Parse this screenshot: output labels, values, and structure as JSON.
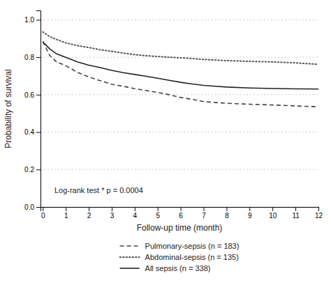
{
  "chart_data": {
    "type": "line",
    "xlabel": "Follow-up time (month)",
    "ylabel": "Probability of survival",
    "annotation": "Log-rank test * p = 0.0004",
    "x": [
      0,
      0.3,
      0.6,
      1,
      1.5,
      2,
      2.5,
      3,
      3.5,
      4,
      4.5,
      5,
      5.5,
      6,
      6.5,
      7,
      7.5,
      8,
      9,
      10,
      11,
      12
    ],
    "series": [
      {
        "name": "Pulmonary-sepsis (n = 183)",
        "color": "#444444",
        "line_style": "dashed",
        "values": [
          0.885,
          0.81,
          0.775,
          0.755,
          0.72,
          0.695,
          0.675,
          0.655,
          0.645,
          0.632,
          0.622,
          0.612,
          0.6,
          0.585,
          0.575,
          0.563,
          0.558,
          0.554,
          0.549,
          0.545,
          0.54,
          0.535
        ]
      },
      {
        "name": "Abdominal-sepsis (n = 135)",
        "color": "#555555",
        "line_style": "dotted",
        "values": [
          0.935,
          0.91,
          0.895,
          0.877,
          0.862,
          0.852,
          0.84,
          0.832,
          0.822,
          0.814,
          0.808,
          0.804,
          0.8,
          0.797,
          0.793,
          0.788,
          0.785,
          0.782,
          0.778,
          0.775,
          0.77,
          0.762
        ]
      },
      {
        "name": "All sepsis (n = 338)",
        "color": "#222222",
        "line_style": "solid",
        "values": [
          0.882,
          0.845,
          0.818,
          0.8,
          0.775,
          0.758,
          0.745,
          0.73,
          0.718,
          0.708,
          0.698,
          0.688,
          0.677,
          0.666,
          0.657,
          0.65,
          0.645,
          0.641,
          0.636,
          0.633,
          0.631,
          0.63
        ]
      }
    ],
    "xlim": [
      -0.1,
      12
    ],
    "ylim": [
      0.0,
      1.05
    ],
    "xticks": [
      0,
      1,
      2,
      3,
      4,
      5,
      6,
      7,
      8,
      9,
      10,
      11,
      12
    ],
    "yticks": [
      {
        "value": 0.0,
        "label": "0.0"
      },
      0.2,
      0.4,
      0.6,
      0.8,
      {
        "value": 1.0,
        "label": "1.0"
      }
    ],
    "grid": true,
    "legend": "bottom"
  }
}
